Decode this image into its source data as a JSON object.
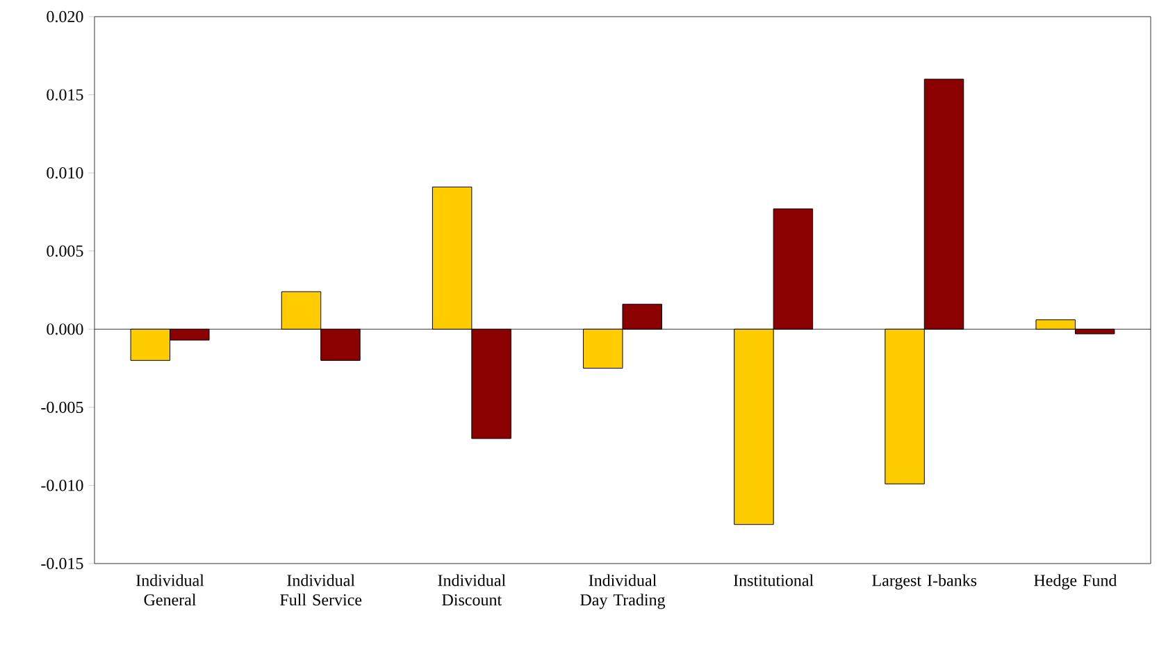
{
  "chart_data": {
    "type": "bar",
    "categories": [
      "Individual General",
      "Individual Full Service",
      "Individual Discount",
      "Individual Day Trading",
      "Institutional",
      "Largest I-banks",
      "Hedge Fund"
    ],
    "series": [
      {
        "color": "#ffcc00",
        "values": [
          -0.002,
          0.0024,
          0.0091,
          -0.0025,
          -0.0125,
          -0.0099,
          0.0006
        ]
      },
      {
        "color": "#8b0000",
        "values": [
          -0.0007,
          -0.002,
          -0.007,
          0.0016,
          0.0077,
          0.016,
          -0.0003
        ]
      }
    ],
    "ylim": [
      -0.015,
      0.02
    ],
    "yticks": [
      {
        "value": -0.015,
        "label": "-0.015"
      },
      {
        "value": -0.01,
        "label": "-0.010"
      },
      {
        "value": -0.005,
        "label": "-0.005"
      },
      {
        "value": 0,
        "label": "0.000"
      },
      {
        "value": 0.005,
        "label": "0.005"
      },
      {
        "value": 0.01,
        "label": "0.010"
      },
      {
        "value": 0.015,
        "label": "0.015"
      },
      {
        "value": 0.02,
        "label": "0.020"
      }
    ],
    "ref_lines": [
      {
        "axis": "y",
        "value": 0,
        "color": "#000000"
      }
    ]
  }
}
